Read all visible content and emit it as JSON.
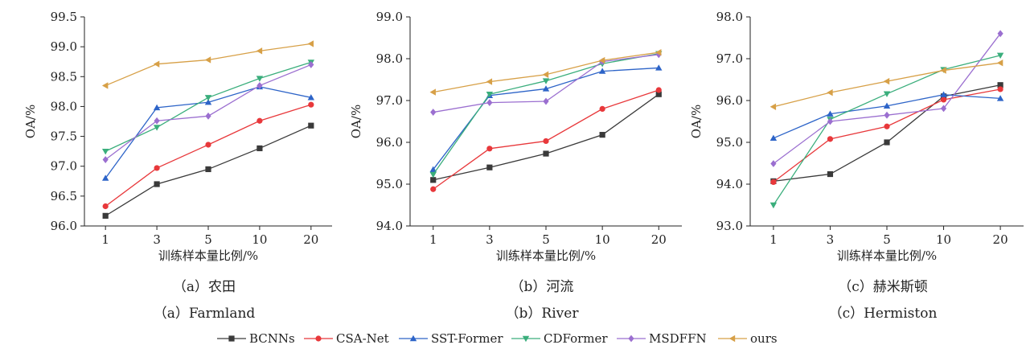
{
  "chart_data": [
    {
      "type": "line",
      "caption_cn": "（a）农田",
      "caption_en": "（a）Farmland",
      "xlabel": "训练样本量比例/%",
      "ylabel": "OA/%",
      "categories": [
        "1",
        "3",
        "5",
        "10",
        "20"
      ],
      "ylim": [
        96.0,
        99.5
      ],
      "yticks": [
        "96.0",
        "96.5",
        "97.0",
        "97.5",
        "98.0",
        "98.5",
        "99.0",
        "99.5"
      ],
      "series": [
        {
          "name": "BCNNs",
          "values": [
            96.17,
            96.7,
            96.95,
            97.3,
            97.68
          ]
        },
        {
          "name": "CSA-Net",
          "values": [
            96.33,
            96.97,
            97.36,
            97.76,
            98.03
          ]
        },
        {
          "name": "SST-Former",
          "values": [
            96.8,
            97.98,
            98.07,
            98.33,
            98.15
          ]
        },
        {
          "name": "CDFormer",
          "values": [
            97.25,
            97.65,
            98.15,
            98.47,
            98.74
          ]
        },
        {
          "name": "MSDFFN",
          "values": [
            97.11,
            97.76,
            97.84,
            98.35,
            98.7
          ]
        },
        {
          "name": "ours",
          "values": [
            98.35,
            98.71,
            98.78,
            98.93,
            99.05
          ]
        }
      ]
    },
    {
      "type": "line",
      "caption_cn": "（b）河流",
      "caption_en": "（b）River",
      "xlabel": "训练样本量比例/%",
      "ylabel": "OA/%",
      "categories": [
        "1",
        "3",
        "5",
        "10",
        "20"
      ],
      "ylim": [
        94.0,
        99.0
      ],
      "yticks": [
        "94.0",
        "95.0",
        "96.0",
        "97.0",
        "98.0",
        "99.0"
      ],
      "series": [
        {
          "name": "BCNNs",
          "values": [
            95.1,
            95.4,
            95.73,
            96.18,
            97.15
          ]
        },
        {
          "name": "CSA-Net",
          "values": [
            94.88,
            95.85,
            96.03,
            96.8,
            97.25
          ]
        },
        {
          "name": "SST-Former",
          "values": [
            95.35,
            97.12,
            97.28,
            97.7,
            97.78
          ]
        },
        {
          "name": "CDFormer",
          "values": [
            95.23,
            97.15,
            97.47,
            97.88,
            98.12
          ]
        },
        {
          "name": "MSDFFN",
          "values": [
            96.72,
            96.95,
            96.98,
            97.93,
            98.1
          ]
        },
        {
          "name": "ours",
          "values": [
            97.2,
            97.45,
            97.62,
            97.96,
            98.15
          ]
        }
      ]
    },
    {
      "type": "line",
      "caption_cn": "（c）赫米斯顿",
      "caption_en": "（c）Hermiston",
      "xlabel": "训练样本量比例/%",
      "ylabel": "OA/%",
      "categories": [
        "1",
        "3",
        "5",
        "10",
        "20"
      ],
      "ylim": [
        93.0,
        98.0
      ],
      "yticks": [
        "93.0",
        "94.0",
        "95.0",
        "96.0",
        "97.0",
        "98.0"
      ],
      "series": [
        {
          "name": "BCNNs",
          "values": [
            94.07,
            94.24,
            95.0,
            96.1,
            96.37
          ]
        },
        {
          "name": "CSA-Net",
          "values": [
            94.05,
            95.08,
            95.38,
            96.02,
            96.27
          ]
        },
        {
          "name": "SST-Former",
          "values": [
            95.1,
            95.68,
            95.87,
            96.14,
            96.05
          ]
        },
        {
          "name": "CDFormer",
          "values": [
            93.5,
            95.55,
            96.16,
            96.74,
            97.08
          ]
        },
        {
          "name": "MSDFFN",
          "values": [
            94.49,
            95.5,
            95.65,
            95.81,
            97.6
          ]
        },
        {
          "name": "ours",
          "values": [
            95.85,
            96.19,
            96.46,
            96.72,
            96.9
          ]
        }
      ]
    }
  ],
  "legend": {
    "placement": "bottom",
    "items": [
      {
        "name": "BCNNs",
        "color": "#3a3a3a",
        "marker": "square"
      },
      {
        "name": "CSA-Net",
        "color": "#e8383b",
        "marker": "circle"
      },
      {
        "name": "SST-Former",
        "color": "#2d64c8",
        "marker": "triangle-up"
      },
      {
        "name": "CDFormer",
        "color": "#3aae7c",
        "marker": "triangle-down"
      },
      {
        "name": "MSDFFN",
        "color": "#9b6fd0",
        "marker": "diamond"
      },
      {
        "name": "ours",
        "color": "#d7a047",
        "marker": "triangle-left"
      }
    ]
  }
}
